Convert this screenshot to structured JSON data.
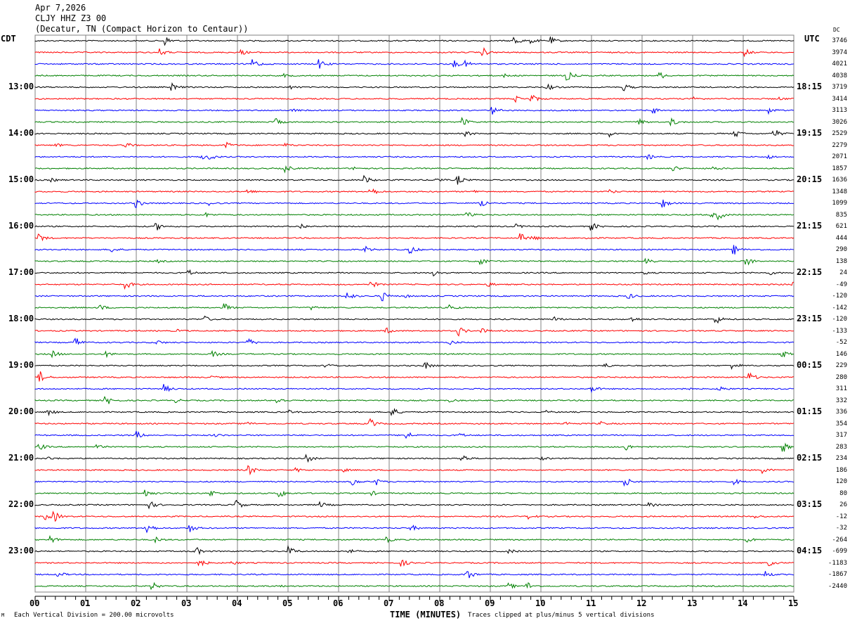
{
  "header": {
    "date": "Apr 7,2026",
    "station": "CLJY HHZ Z3 00",
    "location": "(Decatur, TN (Compact Horizon to Centaur))"
  },
  "left_axis_label": "CDT",
  "right_axis_label": "UTC",
  "dc_label": "DC",
  "footer": {
    "scale_note": "Each Vertical Division =  200.00 microvolts",
    "xlabel": "TIME (MINUTES)",
    "clip_note": "Traces clipped at plus/minus 5 vertical divisions",
    "corner_mark": "M"
  },
  "colors": {
    "trace_cycle": [
      "#000000",
      "#ff0000",
      "#0000ff",
      "#008000"
    ],
    "grid": "#808080"
  },
  "chart_data": {
    "type": "line",
    "title": "CLJY HHZ Z3 00 helicorder",
    "xlabel": "TIME (MINUTES)",
    "xlim": [
      0,
      15
    ],
    "x_ticks": [
      "00",
      "01",
      "02",
      "03",
      "04",
      "05",
      "06",
      "07",
      "08",
      "09",
      "10",
      "11",
      "12",
      "13",
      "14",
      "15"
    ],
    "rows": 48,
    "minutes_per_row": 15,
    "left_time_labels": [
      "13:00",
      "14:00",
      "15:00",
      "16:00",
      "17:00",
      "18:00",
      "19:00",
      "20:00",
      "21:00",
      "22:00",
      "23:00"
    ],
    "right_time_labels": [
      "18:15",
      "19:15",
      "20:15",
      "21:15",
      "22:15",
      "23:15",
      "00:15",
      "01:15",
      "02:15",
      "03:15",
      "04:15"
    ],
    "dc_offsets": [
      "3746",
      "3974",
      "4021",
      "4038",
      "3719",
      "3414",
      "3113",
      "3026",
      "2529",
      "2279",
      "2071",
      "1857",
      "1636",
      "1348",
      "1099",
      "835",
      "621",
      "444",
      "290",
      "138",
      "24",
      "-49",
      "-120",
      "-142",
      "-120",
      "-133",
      "-52",
      "146",
      "229",
      "280",
      "311",
      "332",
      "336",
      "354",
      "317",
      "283",
      "234",
      "186",
      "120",
      "80",
      "26",
      "-12",
      "-32",
      "-264",
      "-699",
      "-1183",
      "-1867",
      "-2440"
    ]
  }
}
